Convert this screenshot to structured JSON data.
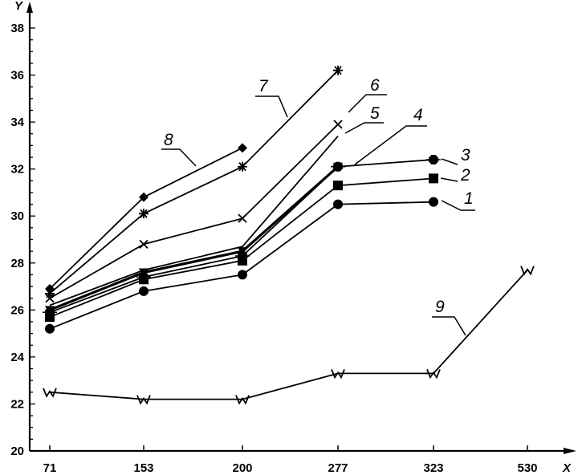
{
  "chart_data": {
    "type": "line",
    "xlabel": "X",
    "ylabel": "Y",
    "categories": [
      "71",
      "153",
      "200",
      "277",
      "323",
      "530"
    ],
    "ylim": [
      20,
      38
    ],
    "y_ticks": [
      "20",
      "22",
      "24",
      "26",
      "28",
      "30",
      "32",
      "34",
      "36",
      "38"
    ],
    "grid": false,
    "series": [
      {
        "name": "1",
        "marker": "circle",
        "values": [
          25.2,
          26.8,
          27.5,
          30.5,
          30.6,
          null
        ]
      },
      {
        "name": "2",
        "marker": "square",
        "values": [
          25.7,
          27.3,
          28.1,
          31.3,
          31.6,
          null
        ]
      },
      {
        "name": "3",
        "marker": "octagon",
        "values": [
          25.9,
          27.4,
          28.3,
          32.1,
          32.4,
          null
        ]
      },
      {
        "name": "4",
        "marker": "triangle",
        "values": [
          26.0,
          27.6,
          28.5,
          32.1,
          null,
          null
        ]
      },
      {
        "name": "5",
        "marker": "none",
        "values": [
          26.2,
          27.7,
          28.7,
          33.4,
          null,
          null
        ]
      },
      {
        "name": "6",
        "marker": "x",
        "values": [
          26.5,
          28.8,
          29.9,
          33.9,
          null,
          null
        ]
      },
      {
        "name": "7",
        "marker": "asterisk",
        "values": [
          26.7,
          30.1,
          32.1,
          36.2,
          null,
          null
        ]
      },
      {
        "name": "8",
        "marker": "diamond",
        "values": [
          26.9,
          30.8,
          32.9,
          null,
          null,
          null
        ]
      },
      {
        "name": "9",
        "marker": "w",
        "values": [
          22.5,
          22.2,
          22.2,
          23.3,
          23.3,
          27.7
        ]
      }
    ]
  }
}
